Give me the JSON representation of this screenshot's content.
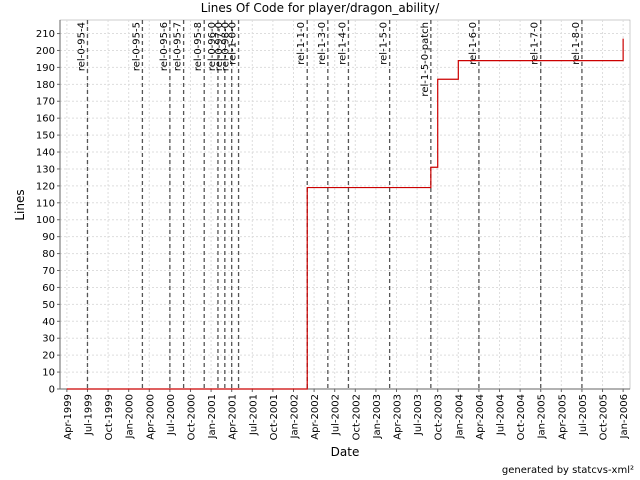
{
  "chart_data": {
    "type": "line",
    "title": "Lines Of Code for player/dragon_ability/",
    "x_label": "Date",
    "y_label": "Lines",
    "color": "#cc0000",
    "grid": true,
    "x": [
      "1999-04",
      "2002-03",
      "2002-03",
      "2003-09",
      "2003-09",
      "2003-10",
      "2003-10",
      "2004-01",
      "2004-01",
      "2006-01",
      "2006-01"
    ],
    "values": [
      0,
      0,
      119,
      119,
      131,
      131,
      183,
      183,
      194,
      194,
      207
    ],
    "xlim": [
      "1999-03",
      "2006-02"
    ],
    "xticks": [
      {
        "value": "1999-04",
        "label": "Apr-1999"
      },
      {
        "value": "1999-07",
        "label": "Jul-1999"
      },
      {
        "value": "1999-10",
        "label": "Oct-1999"
      },
      {
        "value": "2000-01",
        "label": "Jan-2000"
      },
      {
        "value": "2000-04",
        "label": "Apr-2000"
      },
      {
        "value": "2000-07",
        "label": "Jul-2000"
      },
      {
        "value": "2000-10",
        "label": "Oct-2000"
      },
      {
        "value": "2001-01",
        "label": "Jan-2001"
      },
      {
        "value": "2001-04",
        "label": "Apr-2001"
      },
      {
        "value": "2001-07",
        "label": "Jul-2001"
      },
      {
        "value": "2001-10",
        "label": "Oct-2001"
      },
      {
        "value": "2002-01",
        "label": "Jan-2002"
      },
      {
        "value": "2002-04",
        "label": "Apr-2002"
      },
      {
        "value": "2002-07",
        "label": "Jul-2002"
      },
      {
        "value": "2002-10",
        "label": "Oct-2002"
      },
      {
        "value": "2003-01",
        "label": "Jan-2003"
      },
      {
        "value": "2003-04",
        "label": "Apr-2003"
      },
      {
        "value": "2003-07",
        "label": "Jul-2003"
      },
      {
        "value": "2003-10",
        "label": "Oct-2003"
      },
      {
        "value": "2004-01",
        "label": "Jan-2004"
      },
      {
        "value": "2004-04",
        "label": "Apr-2004"
      },
      {
        "value": "2004-07",
        "label": "Jul-2004"
      },
      {
        "value": "2004-10",
        "label": "Oct-2004"
      },
      {
        "value": "2005-01",
        "label": "Jan-2005"
      },
      {
        "value": "2005-04",
        "label": "Apr-2005"
      },
      {
        "value": "2005-07",
        "label": "Jul-2005"
      },
      {
        "value": "2005-10",
        "label": "Oct-2005"
      },
      {
        "value": "2006-01",
        "label": "Jan-2006"
      }
    ],
    "ylim": [
      0,
      218
    ],
    "yticks": [
      0,
      10,
      20,
      30,
      40,
      50,
      60,
      70,
      80,
      90,
      100,
      110,
      120,
      130,
      140,
      150,
      160,
      170,
      180,
      190,
      200,
      210
    ],
    "releases": [
      {
        "label": "rel-0-95-4",
        "x": "1999-07"
      },
      {
        "label": "rel-0-95-5",
        "x": "2000-03"
      },
      {
        "label": "rel-0-95-6",
        "x": "2000-07"
      },
      {
        "label": "rel-0-95-7",
        "x": "2000-09"
      },
      {
        "label": "rel-0-95-8",
        "x": "2000-12"
      },
      {
        "label": "rel-0-96-0",
        "x": "2001-02"
      },
      {
        "label": "rel-0-97-0",
        "x": "2001-03"
      },
      {
        "label": "rel-0-98-0",
        "x": "2001-04"
      },
      {
        "label": "rel-1-0-0",
        "x": "2001-05"
      },
      {
        "label": "rel-1-1-0",
        "x": "2002-03"
      },
      {
        "label": "rel-1-3-0",
        "x": "2002-06"
      },
      {
        "label": "rel-1-4-0",
        "x": "2002-09"
      },
      {
        "label": "rel-1-5-0",
        "x": "2003-03"
      },
      {
        "label": "rel-1-5-0-patch",
        "x": "2003-09"
      },
      {
        "label": "rel-1-6-0",
        "x": "2004-04"
      },
      {
        "label": "rel-1-7-0",
        "x": "2005-01"
      },
      {
        "label": "rel-1-8-0",
        "x": "2005-07"
      }
    ]
  },
  "footer": "generated by statcvs-xml²"
}
